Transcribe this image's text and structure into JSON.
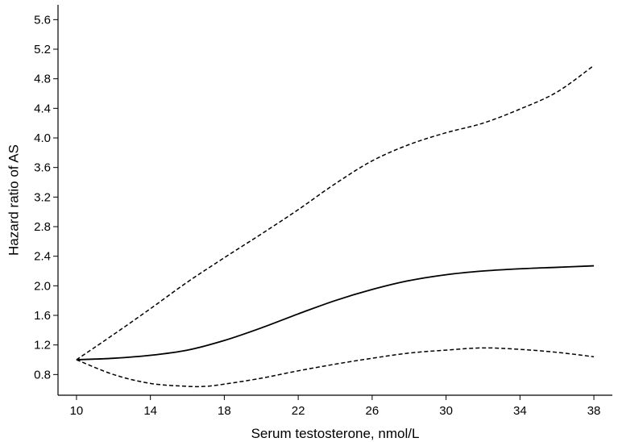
{
  "chart_data": {
    "type": "line",
    "title": "",
    "xlabel": "Serum testosterone, nmol/L",
    "ylabel": "Hazard ratio of AS",
    "xlim": [
      9,
      39
    ],
    "ylim": [
      0.52,
      5.8
    ],
    "x_ticks": [
      10,
      14,
      18,
      22,
      26,
      30,
      34,
      38
    ],
    "y_ticks": [
      0.8,
      1.2,
      1.6,
      2.0,
      2.4,
      2.8,
      3.2,
      3.6,
      4.0,
      4.4,
      4.8,
      5.2,
      5.6
    ],
    "grid": false,
    "legend": "none",
    "series": [
      {
        "style": "solid",
        "x": [
          10,
          12,
          14,
          16,
          18,
          20,
          22,
          24,
          26,
          28,
          30,
          32,
          34,
          36,
          38
        ],
        "y": [
          1.0,
          1.02,
          1.06,
          1.13,
          1.26,
          1.43,
          1.62,
          1.8,
          1.95,
          2.07,
          2.15,
          2.2,
          2.23,
          2.25,
          2.27
        ]
      },
      {
        "style": "dashed",
        "x": [
          10,
          12,
          14,
          16,
          18,
          20,
          22,
          24,
          26,
          28,
          30,
          32,
          34,
          36,
          38
        ],
        "y": [
          1.0,
          1.34,
          1.69,
          2.05,
          2.38,
          2.7,
          3.03,
          3.38,
          3.69,
          3.91,
          4.07,
          4.2,
          4.39,
          4.62,
          4.98
        ]
      },
      {
        "style": "dashed",
        "x": [
          10,
          12,
          14,
          16,
          17,
          18,
          20,
          22,
          24,
          26,
          28,
          30,
          32,
          34,
          36,
          38
        ],
        "y": [
          1.0,
          0.8,
          0.68,
          0.64,
          0.64,
          0.67,
          0.75,
          0.85,
          0.94,
          1.02,
          1.09,
          1.13,
          1.16,
          1.14,
          1.1,
          1.04
        ]
      }
    ]
  }
}
